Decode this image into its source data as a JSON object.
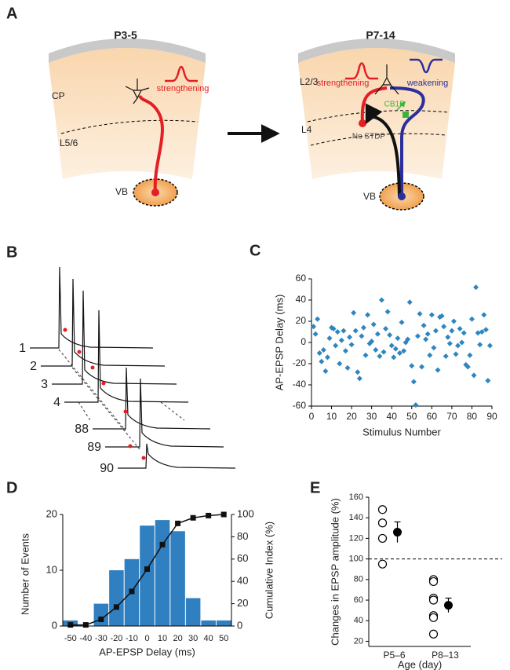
{
  "panel_a": {
    "label": "A",
    "left": {
      "title": "P3-5",
      "layer_top": "CP",
      "layer_bottom": "L5/6",
      "thalamus": "VB",
      "effect": "strengthening"
    },
    "right": {
      "title": "P7-14",
      "layer_top": "L2/3",
      "layer_mid": "L4",
      "thalamus": "VB",
      "effect_red": "strengthening",
      "effect_blue": "weakening",
      "receptor": "CB1R",
      "no_effect": "No STDP"
    }
  },
  "panel_b": {
    "label": "B",
    "traces": [
      "1",
      "2",
      "3",
      "4",
      "88",
      "89",
      "90"
    ]
  },
  "chart_data": [
    {
      "type": "scatter",
      "label": "C",
      "xlabel": "Stimulus Number",
      "ylabel": "AP-EPSP Delay (ms)",
      "color": "#2e86c1",
      "x": [
        1,
        2,
        3,
        4,
        5,
        6,
        7,
        8,
        9,
        10,
        11,
        12,
        13,
        14,
        15,
        16,
        17,
        18,
        19,
        20,
        21,
        22,
        23,
        24,
        25,
        26,
        27,
        28,
        29,
        30,
        31,
        32,
        33,
        34,
        35,
        36,
        37,
        38,
        39,
        40,
        41,
        42,
        43,
        44,
        45,
        46,
        47,
        48,
        49,
        50,
        51,
        52,
        53,
        54,
        55,
        56,
        57,
        58,
        59,
        60,
        61,
        62,
        63,
        64,
        65,
        66,
        67,
        68,
        69,
        70,
        71,
        72,
        73,
        74,
        75,
        76,
        77,
        78,
        79,
        80,
        81,
        82,
        83,
        84,
        85,
        86,
        87,
        88,
        89
      ],
      "values": [
        15,
        8,
        22,
        -10,
        -18,
        -7,
        -27,
        -14,
        4,
        14,
        13,
        -3,
        10,
        -20,
        2,
        11,
        -8,
        -24,
        5,
        -2,
        28,
        11,
        -28,
        -34,
        6,
        14,
        -12,
        26,
        -1,
        1,
        17,
        -7,
        8,
        -13,
        40,
        -9,
        13,
        29,
        7,
        -3,
        -14,
        -6,
        4,
        -10,
        19,
        -8,
        0,
        3,
        38,
        -22,
        -37,
        -59,
        6,
        27,
        -23,
        16,
        3,
        8,
        -12,
        26,
        -5,
        11,
        -26,
        24,
        25,
        15,
        -13,
        5,
        -1,
        11,
        20,
        -11,
        -3,
        13,
        0,
        9,
        -21,
        -23,
        -12,
        22,
        -31,
        52,
        9,
        -2,
        10,
        26,
        12,
        -36,
        -3
      ],
      "xlim": [
        0,
        90
      ],
      "xticks": [
        0,
        10,
        20,
        30,
        40,
        50,
        60,
        70,
        80,
        90
      ],
      "ylim": [
        -60,
        60
      ],
      "yticks": [
        -60,
        -40,
        -20,
        0,
        20,
        40,
        60
      ]
    },
    {
      "type": "bar",
      "label": "D",
      "xlabel": "AP-EPSP Delay (ms)",
      "ylabel": "Number of Events",
      "y2label": "Cumulative Index (%)",
      "categories": [
        "-50",
        "-40",
        "-30",
        "-20",
        "-10",
        "0",
        "10",
        "20",
        "30",
        "40",
        "50"
      ],
      "series": [
        {
          "values": [
            1,
            0,
            4,
            10,
            12,
            18,
            19,
            17,
            5,
            1,
            1
          ],
          "color": "#2f7fc1"
        },
        {
          "type": "line",
          "axis": "y2",
          "color": "#111111",
          "values": [
            1,
            1,
            6,
            17,
            31,
            51,
            73,
            92,
            97,
            99,
            100
          ]
        }
      ],
      "ylim": [
        0,
        20
      ],
      "yticks": [
        0,
        10,
        20
      ],
      "y2lim": [
        0,
        100
      ],
      "y2ticks": [
        0,
        20,
        40,
        60,
        80,
        100
      ]
    },
    {
      "type": "strip",
      "label": "E",
      "xlabel": "Age (day)",
      "ylabel": "Changes in EPSP amplitude (%)",
      "categories": [
        "P5–6",
        "P8–13"
      ],
      "points": [
        [
          148,
          135,
          120,
          95
        ],
        [
          80,
          78,
          62,
          60,
          45,
          43,
          27
        ]
      ],
      "means": [
        126,
        55
      ],
      "errors": [
        10,
        7
      ],
      "reference": 100,
      "ylim": [
        15,
        160
      ],
      "yticks": [
        20,
        40,
        60,
        80,
        100,
        120,
        140,
        160
      ]
    }
  ]
}
